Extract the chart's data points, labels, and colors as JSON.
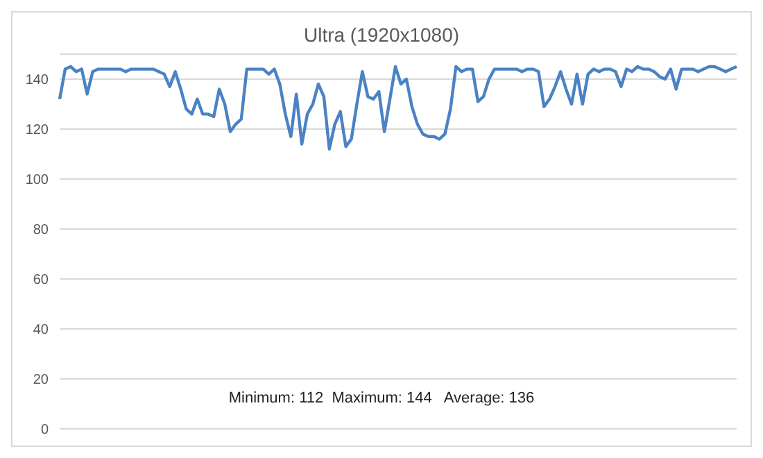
{
  "chart_data": {
    "type": "line",
    "title": "Ultra (1920x1080)",
    "annotations": [
      "Minimum: 112  Maximum: 144   Average: 136"
    ],
    "categories": [
      null,
      null,
      null,
      null,
      null,
      null,
      null,
      null,
      null,
      null,
      null,
      null,
      null,
      null,
      null,
      null,
      null,
      null,
      null,
      null,
      null,
      null,
      null,
      null,
      null,
      null,
      null,
      null,
      null,
      null,
      null,
      null,
      null,
      null,
      null,
      null,
      null,
      null,
      null,
      null,
      null,
      null,
      null,
      null,
      null,
      null,
      null,
      null,
      null,
      null,
      null,
      null,
      null,
      null,
      null,
      null,
      null,
      null,
      null,
      null,
      null,
      null,
      null,
      null,
      null,
      null,
      null,
      null,
      null,
      null,
      null,
      null,
      null,
      null,
      null,
      null,
      null,
      null,
      null,
      null,
      null,
      null,
      null,
      null,
      null,
      null,
      null,
      null,
      null,
      null,
      null,
      null,
      null,
      null,
      null,
      null,
      null,
      null,
      null,
      null,
      null,
      null,
      null,
      null,
      null,
      null,
      null,
      null,
      null,
      null,
      null,
      null,
      null,
      null,
      null,
      null,
      null,
      null,
      null,
      null,
      null,
      null,
      null,
      null
    ],
    "series": [
      {
        "color": "#4a82c4",
        "values": [
          132,
          144,
          145,
          143,
          144,
          134,
          143,
          144,
          144,
          144,
          144,
          144,
          143,
          144,
          144,
          144,
          144,
          144,
          143,
          142,
          137,
          143,
          136,
          128,
          126,
          132,
          126,
          126,
          125,
          136,
          130,
          119,
          122,
          124,
          144,
          144,
          144,
          144,
          142,
          144,
          138,
          126,
          117,
          134,
          114,
          126,
          130,
          138,
          133,
          112,
          122,
          127,
          113,
          116,
          130,
          143,
          133,
          132,
          135,
          119,
          132,
          145,
          138,
          140,
          129,
          122,
          118,
          117,
          117,
          116,
          118,
          128,
          145,
          143,
          144,
          144,
          131,
          133,
          140,
          144,
          144,
          144,
          144,
          144,
          143,
          144,
          144,
          143,
          129,
          132,
          137,
          143,
          136,
          130,
          142,
          130,
          142,
          144,
          143,
          144,
          144,
          143,
          137,
          144,
          143,
          145,
          144,
          144,
          143,
          141,
          140,
          144,
          136,
          144,
          144,
          144,
          143,
          144,
          145,
          145,
          144,
          143,
          144,
          145
        ]
      }
    ],
    "ylim": [
      0,
      150
    ],
    "yticks": [
      0,
      20,
      40,
      60,
      80,
      100,
      120,
      140
    ],
    "grid": "y",
    "legend": false,
    "marker": "none",
    "line_style": "solid"
  }
}
